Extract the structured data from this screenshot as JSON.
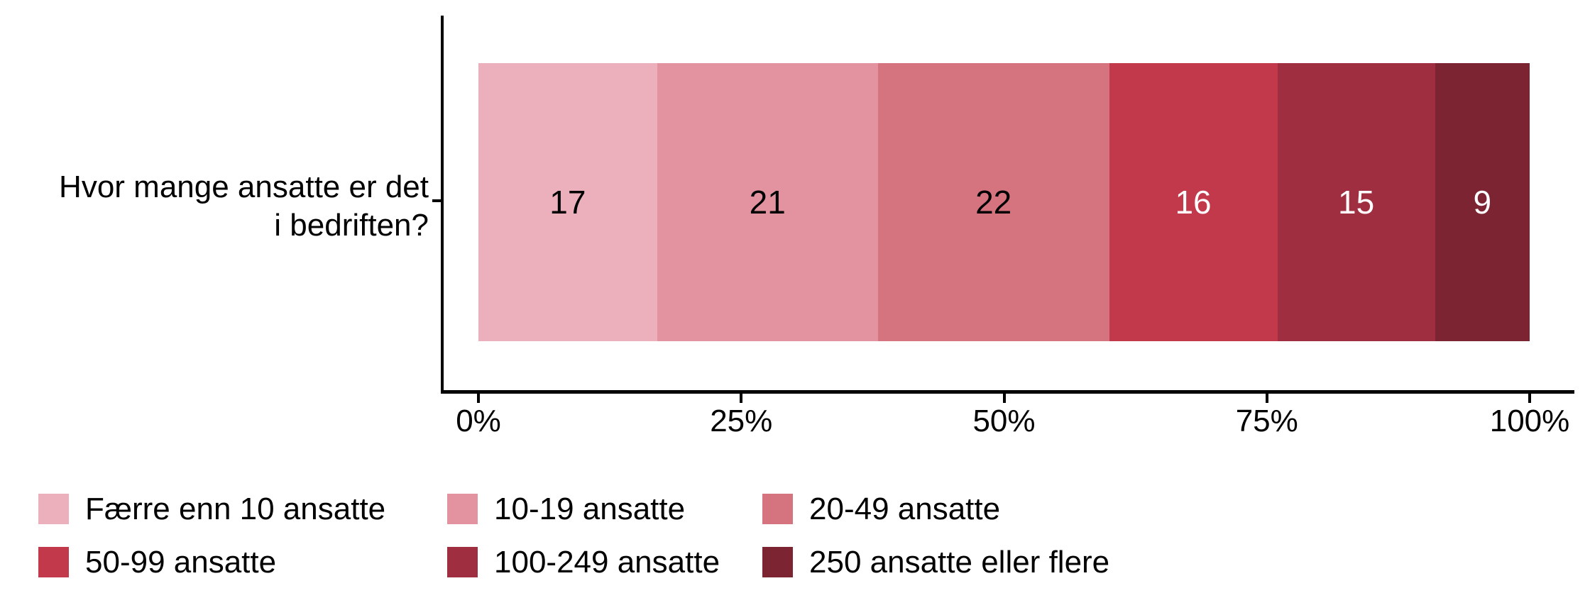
{
  "figure": {
    "background": "#ffffff",
    "text_color": "#000000",
    "axis_color": "#000000"
  },
  "chart_data": {
    "type": "bar",
    "subtype": "horizontal_stacked_percent",
    "title": "",
    "y_category_label_lines": [
      "Hvor mange ansatte er det",
      "i bedriften?"
    ],
    "x_ticks": [
      "0%",
      "25%",
      "50%",
      "75%",
      "100%"
    ],
    "xlim": [
      0,
      100
    ],
    "grid": false,
    "legend_position": "bottom",
    "legend_columns": 3,
    "segments": [
      {
        "label": "Færre enn 10 ansatte",
        "value": 17,
        "color": "#EBB0BB",
        "value_label_color": "#000000"
      },
      {
        "label": "10-19 ansatte",
        "value": 21,
        "color": "#E2939F",
        "value_label_color": "#000000"
      },
      {
        "label": "20-49 ansatte",
        "value": 22,
        "color": "#D5737F",
        "value_label_color": "#000000"
      },
      {
        "label": "50-99 ansatte",
        "value": 16,
        "color": "#C2394B",
        "value_label_color": "#FFFFFF"
      },
      {
        "label": "100-249 ansatte",
        "value": 15,
        "color": "#9F2E40",
        "value_label_color": "#FFFFFF"
      },
      {
        "label": "250 ansatte eller flere",
        "value": 9,
        "color": "#7D2433",
        "value_label_color": "#FFFFFF"
      }
    ]
  }
}
